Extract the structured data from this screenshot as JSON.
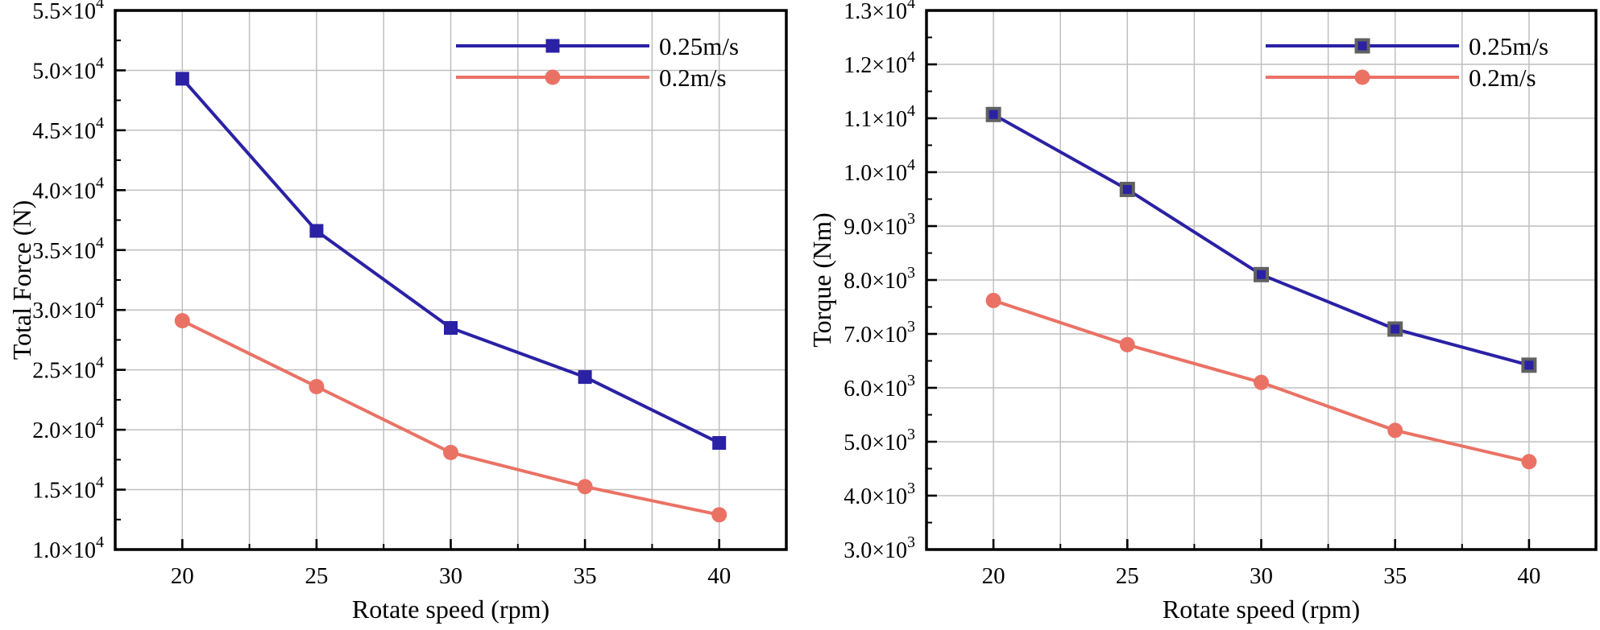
{
  "figure": {
    "background": "#ffffff",
    "description": "Two line charts: Total Force and Torque versus rotate speed for two advance velocities"
  },
  "colors": {
    "series_blue": "#2a21a5",
    "series_salmon": "#ea7265",
    "marker_edge_gray": "#616161",
    "grid": "#bfbfbf",
    "axis": "#000000",
    "text": "#000000"
  },
  "x_axis": {
    "label": "Rotate speed (rpm)",
    "range": [
      17.5,
      42.5
    ],
    "gridline_step": 2.5,
    "major_ticks": [
      {
        "value": 20,
        "label": "20"
      },
      {
        "value": 25,
        "label": "25"
      },
      {
        "value": 30,
        "label": "30"
      },
      {
        "value": 35,
        "label": "35"
      },
      {
        "value": 40,
        "label": "40"
      }
    ],
    "minor_ticks": [
      22.5,
      27.5,
      32.5,
      37.5
    ]
  },
  "chart_data": [
    {
      "type": "line",
      "title": "",
      "xlabel": "Rotate speed (rpm)",
      "ylabel": "Total Force (N)",
      "x": [
        20,
        25,
        30,
        35,
        40
      ],
      "ylim": [
        10000,
        55000
      ],
      "ytick_major_step": 5000,
      "ytick_minor_step": 2500,
      "grid": "on",
      "legend_position": "top-right",
      "legend_frame": false,
      "yticks": [
        {
          "value": 55000,
          "mantissa": "5.5",
          "exponent": "4"
        },
        {
          "value": 50000,
          "mantissa": "5.0",
          "exponent": "4"
        },
        {
          "value": 45000,
          "mantissa": "4.5",
          "exponent": "4"
        },
        {
          "value": 40000,
          "mantissa": "4.0",
          "exponent": "4"
        },
        {
          "value": 35000,
          "mantissa": "3.5",
          "exponent": "4"
        },
        {
          "value": 30000,
          "mantissa": "3.0",
          "exponent": "4"
        },
        {
          "value": 25000,
          "mantissa": "2.5",
          "exponent": "4"
        },
        {
          "value": 20000,
          "mantissa": "2.0",
          "exponent": "4"
        },
        {
          "value": 15000,
          "mantissa": "1.5",
          "exponent": "4"
        },
        {
          "value": 10000,
          "mantissa": "1.0",
          "exponent": "4"
        }
      ],
      "series": [
        {
          "name": "0.25m/s",
          "color_key": "series_blue",
          "marker": "square",
          "marker_edge": "none",
          "values": [
            49300,
            36600,
            28500,
            24400,
            18900
          ]
        },
        {
          "name": "0.2m/s",
          "color_key": "series_salmon",
          "marker": "circle",
          "marker_edge": "none",
          "values": [
            29100,
            23600,
            18100,
            15250,
            12900
          ]
        }
      ]
    },
    {
      "type": "line",
      "title": "",
      "xlabel": "Rotate speed (rpm)",
      "ylabel": "Torque (Nm)",
      "x": [
        20,
        25,
        30,
        35,
        40
      ],
      "ylim": [
        3000,
        13000
      ],
      "ytick_major_step": 1000,
      "ytick_minor_step": 500,
      "grid": "on",
      "legend_position": "top-right",
      "legend_frame": false,
      "yticks": [
        {
          "value": 13000,
          "mantissa": "1.3",
          "exponent": "4"
        },
        {
          "value": 12000,
          "mantissa": "1.2",
          "exponent": "4"
        },
        {
          "value": 11000,
          "mantissa": "1.1",
          "exponent": "4"
        },
        {
          "value": 10000,
          "mantissa": "1.0",
          "exponent": "4"
        },
        {
          "value": 9000,
          "mantissa": "9.0",
          "exponent": "3"
        },
        {
          "value": 8000,
          "mantissa": "8.0",
          "exponent": "3"
        },
        {
          "value": 7000,
          "mantissa": "7.0",
          "exponent": "3"
        },
        {
          "value": 6000,
          "mantissa": "6.0",
          "exponent": "3"
        },
        {
          "value": 5000,
          "mantissa": "5.0",
          "exponent": "3"
        },
        {
          "value": 4000,
          "mantissa": "4.0",
          "exponent": "3"
        },
        {
          "value": 3000,
          "mantissa": "3.0",
          "exponent": "3"
        }
      ],
      "series": [
        {
          "name": "0.25m/s",
          "color_key": "series_blue",
          "marker": "square",
          "marker_edge": "marker_edge_gray",
          "values": [
            11070,
            9680,
            8100,
            7090,
            6420
          ]
        },
        {
          "name": "0.2m/s",
          "color_key": "series_salmon",
          "marker": "circle",
          "marker_edge": "none",
          "values": [
            7620,
            6800,
            6100,
            5210,
            4630
          ]
        }
      ]
    }
  ]
}
